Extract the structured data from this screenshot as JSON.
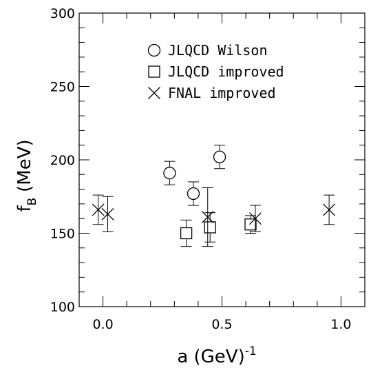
{
  "chart_data": {
    "type": "scatter",
    "xlabel": "a (GeV)",
    "xlabel_superscript": "-1",
    "ylabel": "f",
    "ylabel_subscript": "B",
    "ylabel_unit": "(MeV)",
    "xlim": [
      -0.1,
      1.1
    ],
    "ylim": [
      100,
      300
    ],
    "x_ticks": [
      0.0,
      0.5,
      1.0
    ],
    "x_tick_labels": [
      "0.0",
      "0.5",
      "1.0"
    ],
    "y_ticks": [
      100,
      150,
      200,
      250,
      300
    ],
    "y_tick_labels": [
      "100",
      "150",
      "200",
      "250",
      "300"
    ],
    "x_minor_step": 0.1,
    "y_minor_step": 10,
    "grid": false,
    "legend_position": "top-center",
    "series": [
      {
        "name": "JLQCD Wilson",
        "marker": "circle",
        "points": [
          {
            "x": 0.28,
            "y": 191,
            "err": 8
          },
          {
            "x": 0.38,
            "y": 177,
            "err": 8
          },
          {
            "x": 0.49,
            "y": 202,
            "err": 8
          }
        ]
      },
      {
        "name": "JLQCD improved",
        "marker": "square",
        "points": [
          {
            "x": 0.35,
            "y": 150,
            "err": 9
          },
          {
            "x": 0.45,
            "y": 154,
            "err": 10
          },
          {
            "x": 0.62,
            "y": 156,
            "err": 6
          }
        ]
      },
      {
        "name": "FNAL improved",
        "marker": "cross",
        "points": [
          {
            "x": -0.02,
            "y": 166,
            "err": 10
          },
          {
            "x": 0.02,
            "y": 163,
            "err": 12
          },
          {
            "x": 0.44,
            "y": 161,
            "err": 20
          },
          {
            "x": 0.64,
            "y": 160,
            "err": 9
          },
          {
            "x": 0.95,
            "y": 166,
            "err": 10
          }
        ]
      }
    ]
  }
}
